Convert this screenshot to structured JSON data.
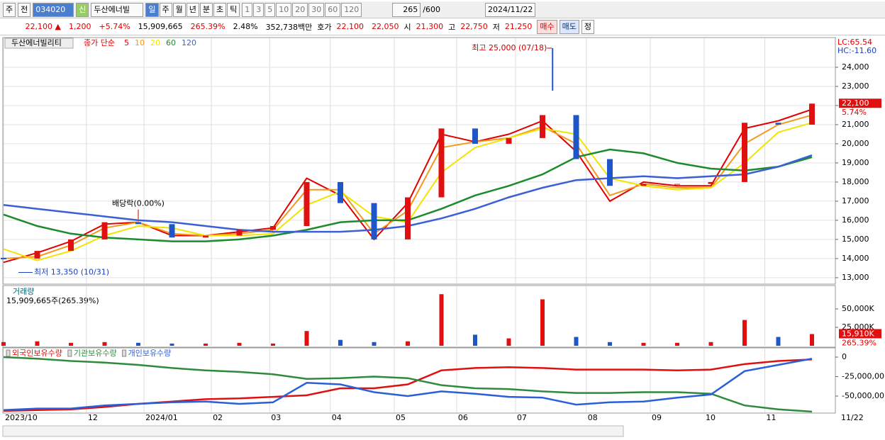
{
  "toolbar": {
    "market": "주",
    "prev": "전",
    "code": "034020",
    "name": "두산에너빌",
    "badge": "신",
    "tabs": [
      "일",
      "주",
      "월",
      "년",
      "분",
      "초",
      "틱"
    ],
    "periods": [
      "1",
      "3",
      "5",
      "10",
      "20",
      "30",
      "60",
      "120"
    ],
    "count": "265",
    "max": "/600",
    "date": "2024/11/22"
  },
  "quote": {
    "price": "22,100 ▲",
    "change": "1,200",
    "rate": "+5.74%",
    "volume": "15,909,665",
    "volume_rate": "265.39%",
    "turnover": "2.48%",
    "amount": "352,738백만",
    "bid_label": "호가",
    "bid": "22,100",
    "ask": "22,050",
    "open_label": "시",
    "open": "21,300",
    "high_label": "고",
    "high": "22,750",
    "low_label": "저",
    "low": "21,250",
    "buy": "매수",
    "sell": "매도",
    "eval": "정"
  },
  "chart_data": [
    {
      "type": "candlestick",
      "title": "두산에너빌리티",
      "legend_title": "종가 단순",
      "lc": "LC:65.54",
      "hc": "HC:-11.60",
      "current_label": "22,100",
      "current_rate": "5.74%",
      "close": [
        14000,
        14400,
        15000,
        15900,
        15800,
        15100,
        15200,
        15500,
        15700,
        18000,
        16900,
        15000,
        17200,
        20800,
        20000,
        20300,
        21500,
        19200,
        17800,
        17900,
        17900,
        18000,
        21100,
        21000,
        22100
      ],
      "series": [
        {
          "name": "5",
          "color": "#e00000",
          "values": [
            13800,
            14300,
            14900,
            15800,
            15900,
            15200,
            15200,
            15400,
            15600,
            18200,
            17300,
            15000,
            16900,
            20500,
            20100,
            20500,
            21200,
            19600,
            17000,
            18000,
            17800,
            17800,
            20800,
            21200,
            21800
          ]
        },
        {
          "name": "10",
          "color": "#f39a1e",
          "values": [
            14000,
            14100,
            14700,
            15600,
            15900,
            15300,
            15200,
            15300,
            15500,
            17600,
            17600,
            15300,
            16500,
            19800,
            20100,
            20300,
            20900,
            20000,
            17300,
            17900,
            17700,
            17700,
            20000,
            21000,
            21500
          ]
        },
        {
          "name": "20",
          "color": "#f2e400",
          "values": [
            14500,
            13900,
            14400,
            15200,
            15700,
            15600,
            15200,
            15200,
            15300,
            16800,
            17500,
            16200,
            15900,
            18500,
            19800,
            20300,
            20800,
            20500,
            18200,
            17800,
            17600,
            17700,
            19000,
            20600,
            21100
          ]
        },
        {
          "name": "60",
          "color": "#1c8b2b",
          "values": [
            16300,
            15700,
            15300,
            15100,
            15000,
            14900,
            14900,
            15000,
            15200,
            15500,
            15900,
            16000,
            16000,
            16600,
            17300,
            17800,
            18400,
            19300,
            19700,
            19500,
            19000,
            18700,
            18600,
            18800,
            19300
          ]
        },
        {
          "name": "120",
          "color": "#3b5fd4",
          "values": [
            16800,
            16600,
            16400,
            16200,
            16000,
            15900,
            15700,
            15500,
            15400,
            15400,
            15400,
            15500,
            15700,
            16100,
            16600,
            17200,
            17700,
            18100,
            18200,
            18300,
            18200,
            18300,
            18400,
            18800,
            19400
          ]
        }
      ],
      "annotations": [
        {
          "text": "최고 25,000 (07/18)",
          "x": 16.3,
          "value": 25000
        },
        {
          "text": "최저 13,350 (10/31)",
          "x": 0.4,
          "value": 13350
        },
        {
          "text": "배당락(0.00%)",
          "x": 4,
          "value": 15900
        }
      ],
      "ylim": [
        12700,
        25480
      ],
      "yticks": [
        {
          "value": 13000,
          "label": "13,000"
        },
        {
          "value": 14000,
          "label": "14,000"
        },
        {
          "value": 15000,
          "label": "15,000"
        },
        {
          "value": 16000,
          "label": "16,000"
        },
        {
          "value": 17000,
          "label": "17,000"
        },
        {
          "value": 18000,
          "label": "18,000"
        },
        {
          "value": 19000,
          "label": "19,000"
        },
        {
          "value": 20000,
          "label": "20,000"
        },
        {
          "value": 21000,
          "label": "21,000"
        },
        {
          "value": 22000,
          "label": "22,000"
        },
        {
          "value": 23000,
          "label": "23,000"
        },
        {
          "value": 24000,
          "label": "24,000"
        }
      ],
      "grid": true
    },
    {
      "type": "bar",
      "title": "거래량",
      "subtitle": "15,909,665주(265.39%)",
      "current_label": "15,910K",
      "current_rate": "265.39%",
      "values": [
        5000,
        6000,
        4000,
        5000,
        4000,
        3000,
        3000,
        4000,
        3000,
        20000,
        8000,
        5000,
        6000,
        70000,
        15000,
        10000,
        63000,
        12000,
        5000,
        4000,
        4000,
        5000,
        35000,
        12000,
        15910
      ],
      "ylim": [
        0,
        79800
      ],
      "yticks": [
        {
          "value": 25000,
          "label": "25,000K"
        },
        {
          "value": 50000,
          "label": "50,000K"
        }
      ]
    },
    {
      "type": "line",
      "series": [
        {
          "name": "외국인보유수량",
          "color": "#e01010",
          "values": [
            -69000000,
            -68000000,
            -67000000,
            -64000000,
            -60000000,
            -57000000,
            -54000000,
            -53000000,
            -51000000,
            -49000000,
            -40000000,
            -40000000,
            -35000000,
            -17000000,
            -14000000,
            -13000000,
            -14000000,
            -16000000,
            -16000000,
            -16000000,
            -17000000,
            -16000000,
            -9000000,
            -5000000,
            -3000000
          ]
        },
        {
          "name": "기관보유수량",
          "color": "#2e8b3c",
          "values": [
            0,
            -2000000,
            -5000000,
            -7000000,
            -10000000,
            -14000000,
            -17000000,
            -19000000,
            -22000000,
            -28000000,
            -27000000,
            -25000000,
            -27000000,
            -36000000,
            -40000000,
            -41000000,
            -44000000,
            -46000000,
            -46000000,
            -45000000,
            -45000000,
            -47000000,
            -62000000,
            -67000000,
            -70000000
          ]
        },
        {
          "name": "개인보유수량",
          "color": "#2a5fd8",
          "values": [
            -68000000,
            -66000000,
            -66000000,
            -62000000,
            -60000000,
            -58000000,
            -57000000,
            -60000000,
            -58000000,
            -33000000,
            -35000000,
            -45000000,
            -50000000,
            -44000000,
            -47000000,
            -51000000,
            -52000000,
            -61000000,
            -58000000,
            -57000000,
            -52000000,
            -48000000,
            -18000000,
            -10000000,
            -2000000
          ]
        }
      ],
      "ylim": [
        -70900000,
        10900000
      ],
      "yticks": [
        0,
        {
          "value": -25000000,
          "label": "-25,000,00"
        },
        {
          "value": -50000000,
          "label": "-50,000,00"
        }
      ],
      "xlim": [
        0,
        24
      ],
      "xticks": [
        {
          "value": 0,
          "label": "2023/10"
        },
        {
          "value": 2.46,
          "label": "12"
        },
        {
          "value": 4.17,
          "label": "2024/01"
        },
        {
          "value": 6.17,
          "label": "02"
        },
        {
          "value": 7.9,
          "label": "03"
        },
        {
          "value": 9.7,
          "label": "04"
        },
        {
          "value": 11.6,
          "label": "05"
        },
        {
          "value": 13.45,
          "label": "06"
        },
        {
          "value": 15.2,
          "label": "07"
        },
        {
          "value": 17.3,
          "label": "08"
        },
        {
          "value": 19.2,
          "label": "09"
        },
        {
          "value": 20.8,
          "label": "10"
        },
        {
          "value": 22.6,
          "label": "11"
        }
      ],
      "date_label": "11/22"
    }
  ]
}
